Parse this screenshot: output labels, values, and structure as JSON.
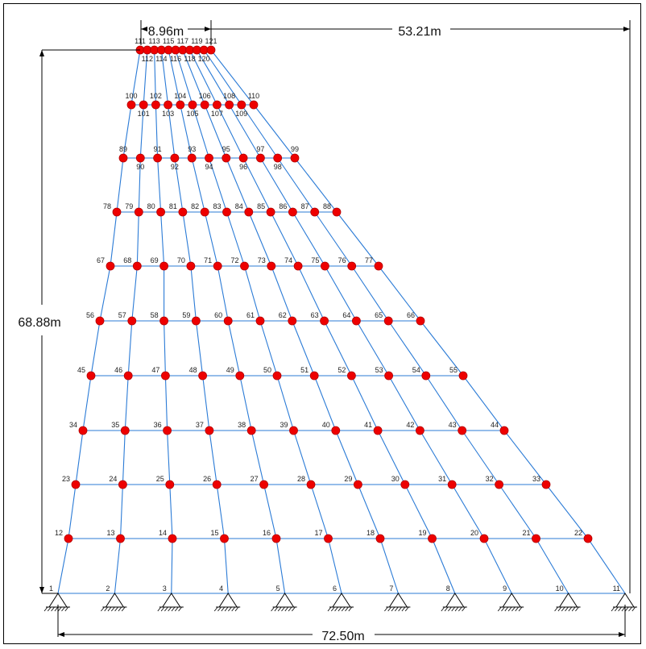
{
  "dimensions": {
    "top_width": "8.96m",
    "right_offset": "53.21m",
    "height": "68.88m",
    "base_width": "72.50m"
  },
  "colors": {
    "member": "#2b7bd6",
    "node": "#ee0000",
    "node_outline": "#b30000",
    "dimension": "#000000"
  },
  "icons": {
    "support": "pin-support-icon"
  },
  "rows": [
    {
      "start": 1,
      "end": 11
    },
    {
      "start": 12,
      "end": 22
    },
    {
      "start": 23,
      "end": 33
    },
    {
      "start": 34,
      "end": 44
    },
    {
      "start": 45,
      "end": 55
    },
    {
      "start": 56,
      "end": 66
    },
    {
      "start": 67,
      "end": 77
    },
    {
      "start": 78,
      "end": 88
    },
    {
      "start": 89,
      "end": 99
    },
    {
      "start": 100,
      "end": 110
    },
    {
      "start": 111,
      "end": 121
    }
  ]
}
